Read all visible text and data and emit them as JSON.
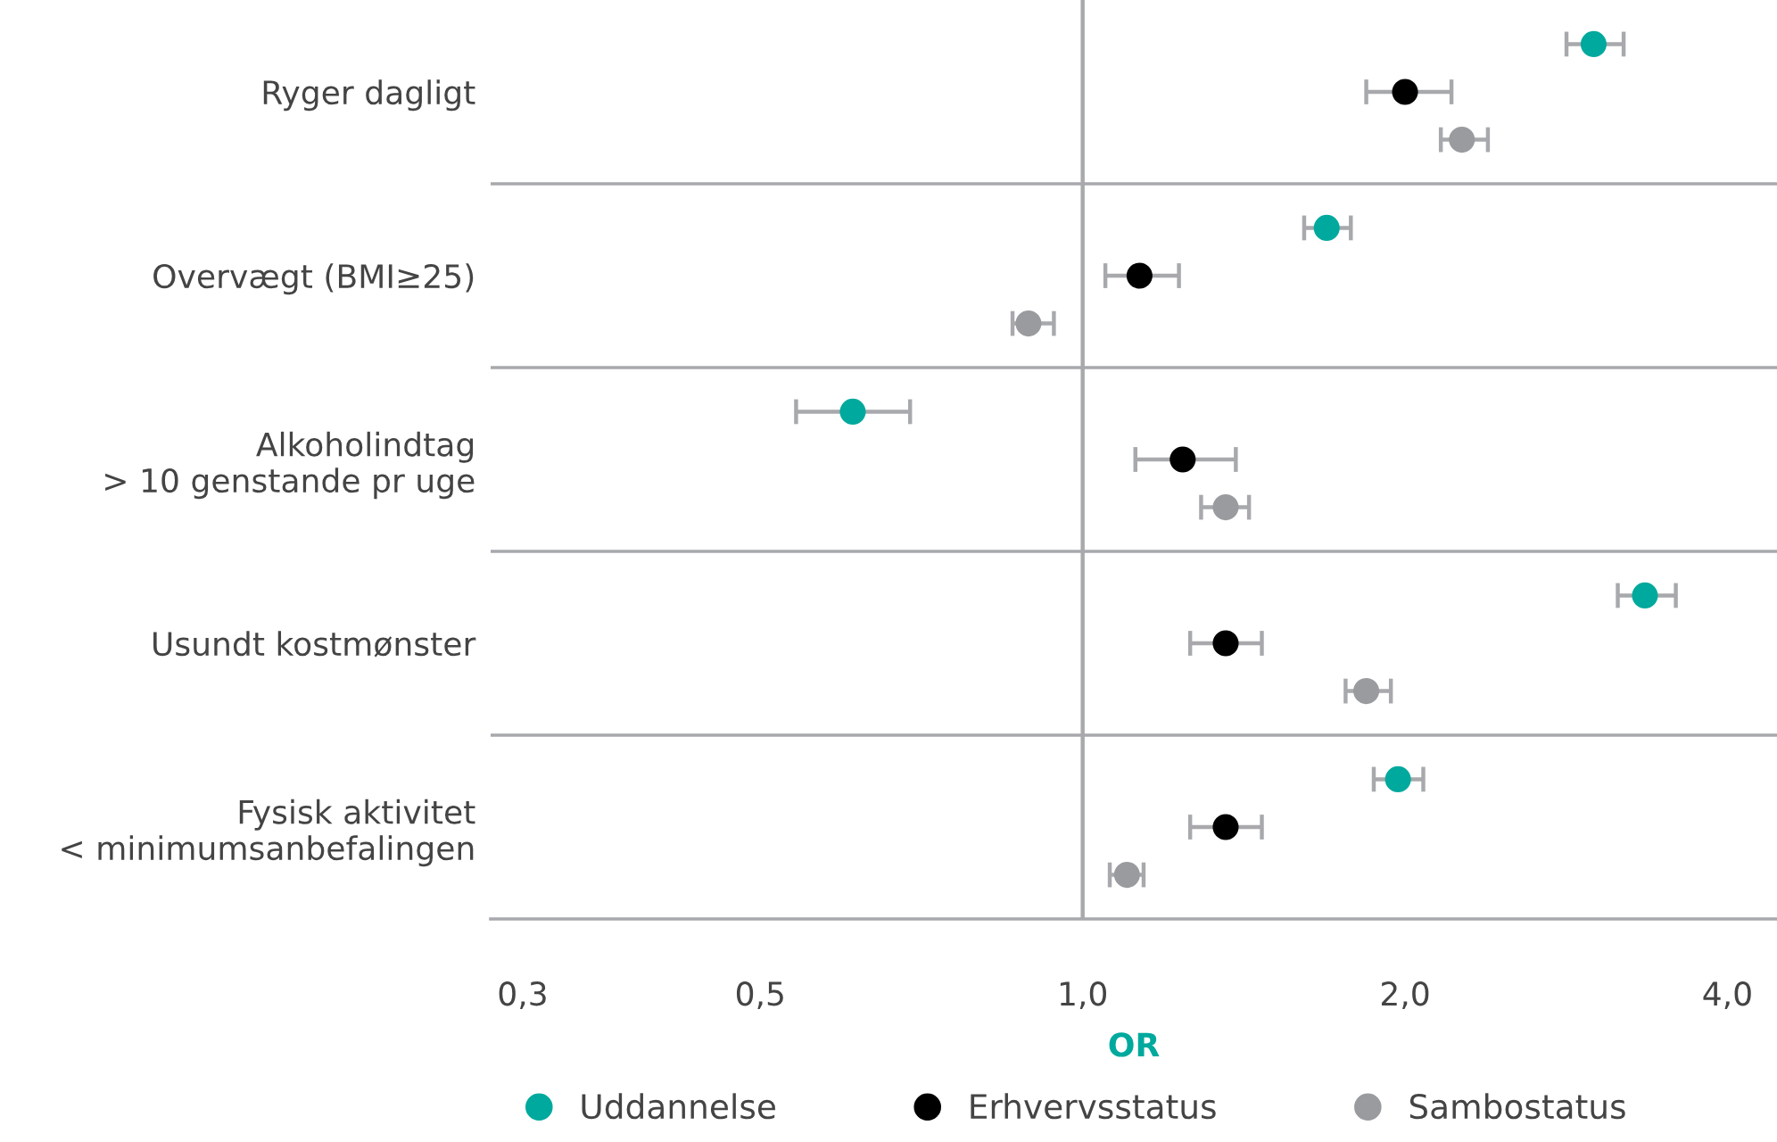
{
  "chart_data": {
    "type": "scatter",
    "orientation": "horizontal",
    "xlabel": "OR",
    "log": "x",
    "categories": [
      "Ryger dagligt",
      "Overvægt (BMI≥25)",
      "Alkoholindtag\n> 10 genstande pr uge",
      "Usundt kostmønster",
      "Fysisk aktivitet\n< minimumsanbefalingen"
    ],
    "series": [
      {
        "name": "Uddannelse",
        "color": "#00a99d",
        "values": [
          3.0,
          1.69,
          0.61,
          3.35,
          1.97
        ],
        "errors": [
          [
            2.83,
            3.2
          ],
          [
            1.61,
            1.78
          ],
          [
            0.54,
            0.69
          ],
          [
            3.16,
            3.58
          ],
          [
            1.87,
            2.08
          ]
        ]
      },
      {
        "name": "Erhvervsstatus",
        "color": "#000000",
        "values": [
          2.0,
          1.13,
          1.24,
          1.36,
          1.36
        ],
        "errors": [
          [
            1.84,
            2.21
          ],
          [
            1.05,
            1.23
          ],
          [
            1.12,
            1.39
          ],
          [
            1.26,
            1.47
          ],
          [
            1.26,
            1.47
          ]
        ]
      },
      {
        "name": "Sambostatus",
        "color": "#999b9e",
        "values": [
          2.26,
          0.89,
          1.36,
          1.84,
          1.1
        ],
        "errors": [
          [
            2.16,
            2.39
          ],
          [
            0.86,
            0.94
          ],
          [
            1.29,
            1.43
          ],
          [
            1.76,
            1.94
          ],
          [
            1.06,
            1.14
          ]
        ]
      }
    ],
    "xlim": [
      0.28,
      4.45
    ],
    "xticks": [
      {
        "value": 0.3,
        "label": "0,3"
      },
      {
        "value": 0.5,
        "label": "0,5"
      },
      {
        "value": 1.0,
        "label": "1,0"
      },
      {
        "value": 2.0,
        "label": "2,0"
      },
      {
        "value": 4.0,
        "label": "4,0"
      }
    ],
    "ref_lines": [
      {
        "axis": "x",
        "value": 1.0,
        "color": "#a7a9ac"
      }
    ],
    "grid": "y",
    "legend": "bottom",
    "marker": "circle"
  }
}
